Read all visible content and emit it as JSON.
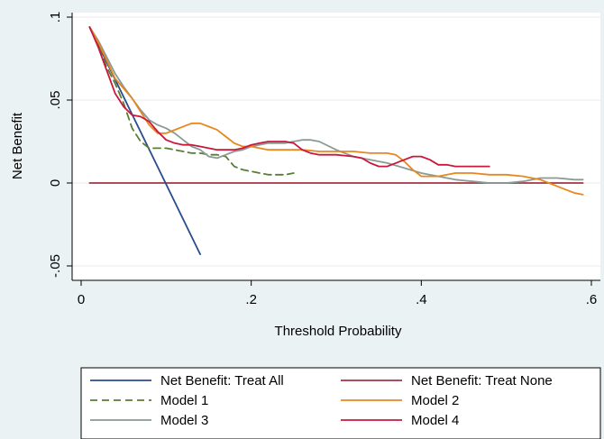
{
  "chart_data": {
    "type": "line",
    "xlabel": "Threshold Probability",
    "ylabel": "Net Benefit",
    "xlim": [
      0,
      0.6
    ],
    "ylim": [
      -0.05,
      0.1
    ],
    "xticks": [
      {
        "value": 0,
        "label": "0"
      },
      {
        "value": 0.2,
        "label": ".2"
      },
      {
        "value": 0.4,
        "label": ".4"
      },
      {
        "value": 0.6,
        "label": ".6"
      }
    ],
    "yticks": [
      {
        "value": -0.05,
        "label": "-.05"
      },
      {
        "value": 0,
        "label": "0"
      },
      {
        "value": 0.05,
        "label": ".05"
      },
      {
        "value": 0.1,
        "label": ".1"
      }
    ],
    "legend_position": "bottom",
    "series": [
      {
        "name": "Net Benefit: Treat All",
        "color": "#2b4c8c",
        "dash": "solid",
        "x": [
          0.01,
          0.14
        ],
        "y": [
          0.094,
          -0.043
        ]
      },
      {
        "name": "Net Benefit: Treat None",
        "color": "#a43344",
        "dash": "solid",
        "x": [
          0.01,
          0.59
        ],
        "y": [
          0,
          0
        ]
      },
      {
        "name": "Model 1",
        "color": "#5a7d34",
        "dash": "dashed",
        "x": [
          0.01,
          0.02,
          0.03,
          0.04,
          0.05,
          0.06,
          0.07,
          0.08,
          0.09,
          0.1,
          0.11,
          0.12,
          0.13,
          0.14,
          0.15,
          0.16,
          0.17,
          0.18,
          0.19,
          0.2,
          0.21,
          0.22,
          0.23,
          0.24,
          0.25
        ],
        "y": [
          0.094,
          0.083,
          0.07,
          0.06,
          0.048,
          0.033,
          0.025,
          0.021,
          0.021,
          0.021,
          0.02,
          0.019,
          0.018,
          0.018,
          0.017,
          0.017,
          0.016,
          0.01,
          0.008,
          0.007,
          0.006,
          0.005,
          0.005,
          0.005,
          0.006
        ]
      },
      {
        "name": "Model 2",
        "color": "#e8871e",
        "dash": "solid",
        "x": [
          0.01,
          0.02,
          0.03,
          0.04,
          0.05,
          0.06,
          0.07,
          0.08,
          0.09,
          0.1,
          0.11,
          0.12,
          0.13,
          0.14,
          0.15,
          0.16,
          0.17,
          0.18,
          0.19,
          0.2,
          0.22,
          0.24,
          0.26,
          0.28,
          0.3,
          0.32,
          0.34,
          0.36,
          0.37,
          0.38,
          0.39,
          0.4,
          0.42,
          0.44,
          0.46,
          0.48,
          0.5,
          0.52,
          0.53,
          0.54,
          0.55,
          0.56,
          0.57,
          0.58,
          0.59
        ],
        "y": [
          0.094,
          0.085,
          0.074,
          0.063,
          0.057,
          0.051,
          0.043,
          0.035,
          0.03,
          0.03,
          0.032,
          0.034,
          0.036,
          0.036,
          0.034,
          0.032,
          0.028,
          0.024,
          0.022,
          0.022,
          0.02,
          0.02,
          0.02,
          0.019,
          0.019,
          0.019,
          0.018,
          0.018,
          0.017,
          0.013,
          0.008,
          0.004,
          0.004,
          0.006,
          0.006,
          0.005,
          0.005,
          0.004,
          0.003,
          0.002,
          0.0,
          -0.002,
          -0.004,
          -0.006,
          -0.007
        ]
      },
      {
        "name": "Model 3",
        "color": "#8a9a94",
        "dash": "solid",
        "x": [
          0.01,
          0.02,
          0.03,
          0.04,
          0.05,
          0.06,
          0.07,
          0.08,
          0.09,
          0.1,
          0.11,
          0.12,
          0.13,
          0.14,
          0.15,
          0.16,
          0.17,
          0.18,
          0.19,
          0.2,
          0.22,
          0.24,
          0.25,
          0.26,
          0.27,
          0.28,
          0.3,
          0.32,
          0.34,
          0.36,
          0.38,
          0.4,
          0.42,
          0.44,
          0.46,
          0.48,
          0.5,
          0.52,
          0.54,
          0.56,
          0.58,
          0.59
        ],
        "y": [
          0.094,
          0.086,
          0.076,
          0.066,
          0.058,
          0.051,
          0.044,
          0.038,
          0.035,
          0.033,
          0.03,
          0.026,
          0.022,
          0.02,
          0.016,
          0.015,
          0.017,
          0.019,
          0.02,
          0.022,
          0.024,
          0.024,
          0.025,
          0.026,
          0.026,
          0.025,
          0.02,
          0.016,
          0.014,
          0.012,
          0.009,
          0.006,
          0.004,
          0.002,
          0.001,
          0.0,
          0.0,
          0.001,
          0.003,
          0.003,
          0.002,
          0.002
        ]
      },
      {
        "name": "Model 4",
        "color": "#c8183c",
        "dash": "solid",
        "x": [
          0.01,
          0.02,
          0.03,
          0.04,
          0.05,
          0.06,
          0.07,
          0.08,
          0.09,
          0.1,
          0.11,
          0.12,
          0.13,
          0.14,
          0.15,
          0.16,
          0.17,
          0.18,
          0.19,
          0.2,
          0.21,
          0.22,
          0.23,
          0.24,
          0.25,
          0.26,
          0.27,
          0.28,
          0.3,
          0.32,
          0.33,
          0.34,
          0.35,
          0.36,
          0.37,
          0.38,
          0.39,
          0.4,
          0.41,
          0.42,
          0.43,
          0.44,
          0.46,
          0.48
        ],
        "y": [
          0.094,
          0.082,
          0.068,
          0.054,
          0.046,
          0.041,
          0.04,
          0.037,
          0.031,
          0.026,
          0.024,
          0.023,
          0.023,
          0.022,
          0.021,
          0.02,
          0.02,
          0.02,
          0.021,
          0.023,
          0.024,
          0.025,
          0.025,
          0.025,
          0.024,
          0.02,
          0.018,
          0.017,
          0.017,
          0.016,
          0.015,
          0.012,
          0.01,
          0.01,
          0.012,
          0.014,
          0.016,
          0.016,
          0.014,
          0.011,
          0.011,
          0.01,
          0.01,
          0.01
        ]
      }
    ]
  }
}
